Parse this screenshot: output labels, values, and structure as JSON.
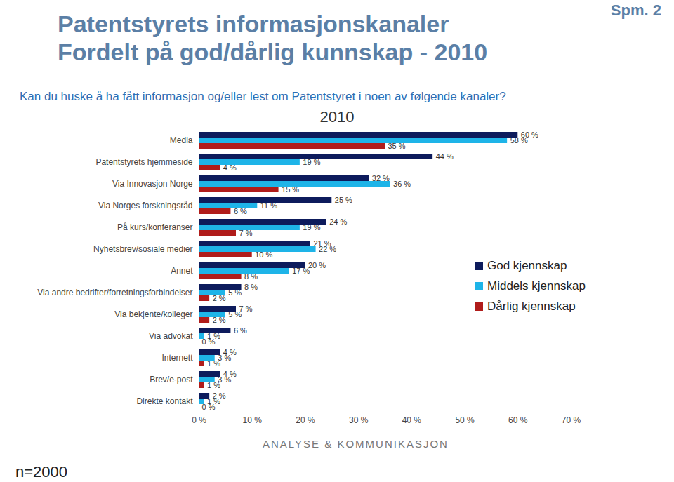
{
  "chart_data": {
    "type": "bar",
    "orientation": "horizontal",
    "title": [
      "Patentstyrets informasjonskanaler",
      "Fordelt på god/dårlig kunnskap - 2010"
    ],
    "subtitle": "Kan du huske å ha fått informasjon og/eller lest om Patentstyret i noen av følgende kanaler?",
    "chart_title": "2010",
    "annotations": [
      "Spm. 2",
      "ANALYSE & KOMMUNIKASJON",
      "n=2000"
    ],
    "categories": [
      "Media",
      "Patentstyrets hjemmeside",
      "Via Innovasjon Norge",
      "Via Norges forskningsråd",
      "På kurs/konferanser",
      "Nyhetsbrev/sosiale medier",
      "Annet",
      "Via andre bedrifter/forretningsforbindelser",
      "Via bekjente/kolleger",
      "Via advokat",
      "Internett",
      "Brev/e-post",
      "Direkte kontakt"
    ],
    "series": [
      {
        "name": "God kjennskap",
        "color": "#0d1b5c",
        "values": [
          60,
          44,
          32,
          25,
          24,
          21,
          20,
          8,
          7,
          6,
          4,
          4,
          2
        ],
        "value_labels": [
          "60 %",
          "44 %",
          "32 %",
          "25 %",
          "24 %",
          "21 %",
          "20 %",
          "8 %",
          "7 %",
          "6 %",
          "4 %",
          "4 %",
          "2 %"
        ]
      },
      {
        "name": "Middels kjennskap",
        "color": "#1eb4e8",
        "values": [
          58,
          19,
          36,
          11,
          19,
          22,
          17,
          5,
          5,
          1,
          3,
          3,
          1
        ],
        "value_labels": [
          "58 %",
          "19 %",
          "36 %",
          "11 %",
          "19 %",
          "22 %",
          "17 %",
          "5 %",
          "5 %",
          "1 %",
          "3 %",
          "3 %",
          "1 %"
        ]
      },
      {
        "name": "Dårlig kjennskap",
        "color": "#b01c1a",
        "values": [
          35,
          4,
          15,
          6,
          7,
          10,
          8,
          2,
          2,
          0,
          1,
          1,
          0
        ],
        "value_labels": [
          "35 %",
          "4 %",
          "15 %",
          "6 %",
          "7 %",
          "10 %",
          "8 %",
          "2 %",
          "2 %",
          "0 %",
          "1 %",
          "1 %",
          "0 %"
        ]
      }
    ],
    "xlim": [
      0,
      70
    ],
    "xticks": [
      {
        "value": 0,
        "label": "0 %"
      },
      {
        "value": 10,
        "label": "10 %"
      },
      {
        "value": 20,
        "label": "20 %"
      },
      {
        "value": 30,
        "label": "30 %"
      },
      {
        "value": 40,
        "label": "40 %"
      },
      {
        "value": 50,
        "label": "50 %"
      },
      {
        "value": 60,
        "label": "60 %"
      },
      {
        "value": 70,
        "label": "70 %"
      }
    ],
    "grid": false,
    "legend": "right",
    "data_labels": true
  }
}
